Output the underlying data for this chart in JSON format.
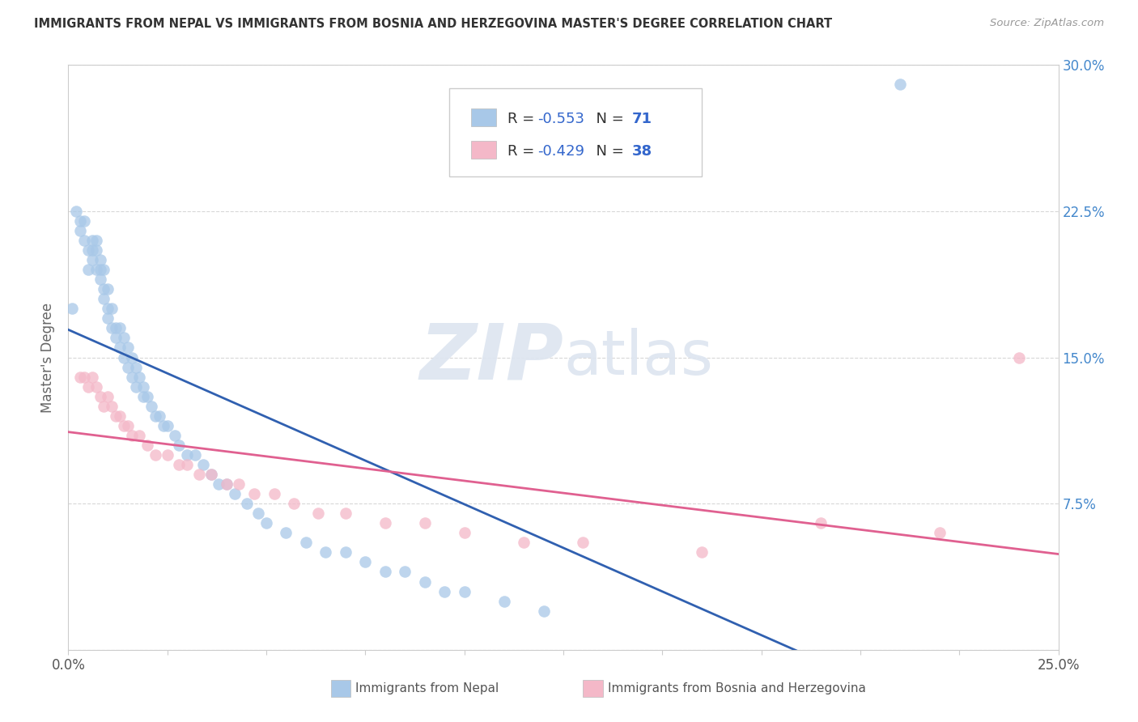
{
  "title": "IMMIGRANTS FROM NEPAL VS IMMIGRANTS FROM BOSNIA AND HERZEGOVINA MASTER'S DEGREE CORRELATION CHART",
  "source": "Source: ZipAtlas.com",
  "ylabel": "Master's Degree",
  "xlim": [
    0.0,
    0.25
  ],
  "ylim": [
    0.0,
    0.3
  ],
  "watermark_zip": "ZIP",
  "watermark_atlas": "atlas",
  "legend1_label": "Immigrants from Nepal",
  "legend2_label": "Immigrants from Bosnia and Herzegovina",
  "R1": -0.553,
  "N1": 71,
  "R2": -0.429,
  "N2": 38,
  "color1": "#a8c8e8",
  "color2": "#f4b8c8",
  "line_color1": "#3060b0",
  "line_color2": "#e06090",
  "grid_color": "#d8d8d8",
  "background_color": "#ffffff",
  "axis_color": "#cccccc",
  "nepal_x": [
    0.001,
    0.002,
    0.003,
    0.003,
    0.004,
    0.004,
    0.005,
    0.005,
    0.006,
    0.006,
    0.006,
    0.007,
    0.007,
    0.007,
    0.008,
    0.008,
    0.008,
    0.009,
    0.009,
    0.009,
    0.01,
    0.01,
    0.01,
    0.011,
    0.011,
    0.012,
    0.012,
    0.013,
    0.013,
    0.014,
    0.014,
    0.015,
    0.015,
    0.016,
    0.016,
    0.017,
    0.017,
    0.018,
    0.019,
    0.019,
    0.02,
    0.021,
    0.022,
    0.023,
    0.024,
    0.025,
    0.027,
    0.028,
    0.03,
    0.032,
    0.034,
    0.036,
    0.038,
    0.04,
    0.042,
    0.045,
    0.048,
    0.05,
    0.055,
    0.06,
    0.065,
    0.07,
    0.075,
    0.08,
    0.085,
    0.09,
    0.095,
    0.1,
    0.11,
    0.12,
    0.21
  ],
  "nepal_y": [
    0.175,
    0.225,
    0.22,
    0.215,
    0.22,
    0.21,
    0.205,
    0.195,
    0.21,
    0.205,
    0.2,
    0.21,
    0.205,
    0.195,
    0.2,
    0.195,
    0.19,
    0.195,
    0.185,
    0.18,
    0.185,
    0.175,
    0.17,
    0.175,
    0.165,
    0.165,
    0.16,
    0.165,
    0.155,
    0.16,
    0.15,
    0.155,
    0.145,
    0.15,
    0.14,
    0.145,
    0.135,
    0.14,
    0.135,
    0.13,
    0.13,
    0.125,
    0.12,
    0.12,
    0.115,
    0.115,
    0.11,
    0.105,
    0.1,
    0.1,
    0.095,
    0.09,
    0.085,
    0.085,
    0.08,
    0.075,
    0.07,
    0.065,
    0.06,
    0.055,
    0.05,
    0.05,
    0.045,
    0.04,
    0.04,
    0.035,
    0.03,
    0.03,
    0.025,
    0.02,
    0.29
  ],
  "bosnia_x": [
    0.003,
    0.004,
    0.005,
    0.006,
    0.007,
    0.008,
    0.009,
    0.01,
    0.011,
    0.012,
    0.013,
    0.014,
    0.015,
    0.016,
    0.018,
    0.02,
    0.022,
    0.025,
    0.028,
    0.03,
    0.033,
    0.036,
    0.04,
    0.043,
    0.047,
    0.052,
    0.057,
    0.063,
    0.07,
    0.08,
    0.09,
    0.1,
    0.115,
    0.13,
    0.16,
    0.19,
    0.22,
    0.24
  ],
  "bosnia_y": [
    0.14,
    0.14,
    0.135,
    0.14,
    0.135,
    0.13,
    0.125,
    0.13,
    0.125,
    0.12,
    0.12,
    0.115,
    0.115,
    0.11,
    0.11,
    0.105,
    0.1,
    0.1,
    0.095,
    0.095,
    0.09,
    0.09,
    0.085,
    0.085,
    0.08,
    0.08,
    0.075,
    0.07,
    0.07,
    0.065,
    0.065,
    0.06,
    0.055,
    0.055,
    0.05,
    0.065,
    0.06,
    0.15
  ]
}
